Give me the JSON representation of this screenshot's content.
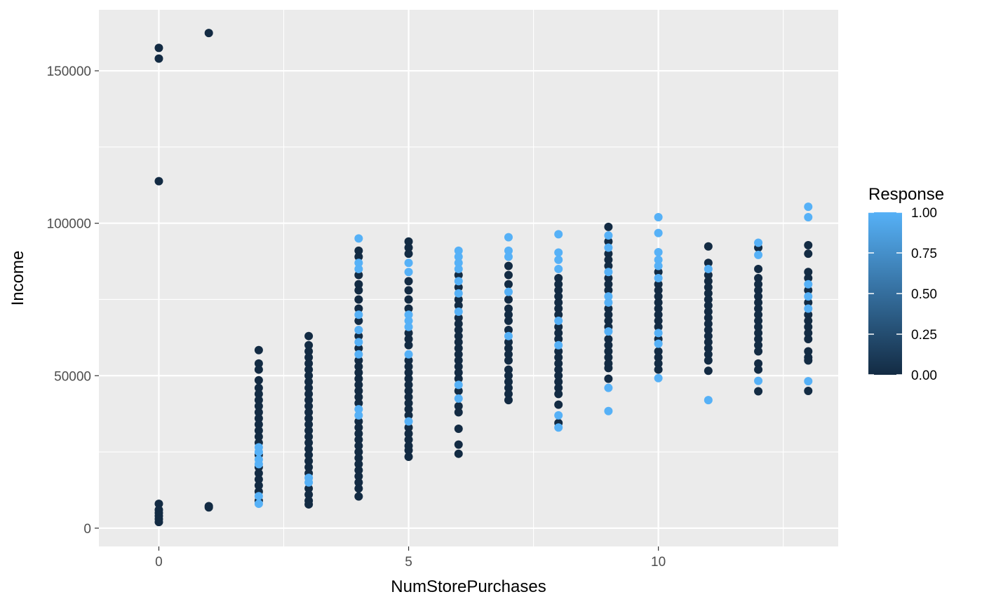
{
  "chart_data": {
    "type": "scatter",
    "xlabel": "NumStorePurchases",
    "ylabel": "Income",
    "xlim": [
      -1.2,
      13.6
    ],
    "ylim": [
      -6000,
      170000
    ],
    "x_ticks": [
      0,
      5,
      10
    ],
    "x_tick_labels": [
      "0",
      "5",
      "10"
    ],
    "y_ticks": [
      0,
      50000,
      100000,
      150000
    ],
    "y_tick_labels": [
      "0",
      "50000",
      "100000",
      "150000"
    ],
    "grid": true,
    "legend": {
      "title": "Response",
      "type": "colorbar",
      "position": "right",
      "low_color": "#132B43",
      "high_color": "#56B1F7",
      "range": [
        0,
        1
      ],
      "breaks": [
        0,
        0.25,
        0.5,
        0.75,
        1
      ],
      "labels": [
        "0.00",
        "0.25",
        "0.50",
        "0.75",
        "1.00"
      ]
    },
    "points": [
      [
        0,
        157500,
        0
      ],
      [
        0,
        154000,
        0
      ],
      [
        0,
        113800,
        0
      ],
      [
        0,
        8000,
        0
      ],
      [
        0,
        6000,
        0
      ],
      [
        0,
        5000,
        0
      ],
      [
        0,
        4000,
        0
      ],
      [
        0,
        3000,
        0
      ],
      [
        0,
        2000,
        0
      ],
      [
        1,
        162400,
        0
      ],
      [
        1,
        7200,
        0
      ],
      [
        1,
        6800,
        0
      ],
      [
        2,
        58400,
        0
      ],
      [
        2,
        54000,
        0
      ],
      [
        2,
        52000,
        0
      ],
      [
        2,
        48500,
        0
      ],
      [
        2,
        46000,
        0
      ],
      [
        2,
        44000,
        0
      ],
      [
        2,
        42000,
        0
      ],
      [
        2,
        40000,
        0
      ],
      [
        2,
        38000,
        0
      ],
      [
        2,
        36000,
        0
      ],
      [
        2,
        34000,
        0
      ],
      [
        2,
        32000,
        0
      ],
      [
        2,
        30000,
        0
      ],
      [
        2,
        28000,
        0
      ],
      [
        2,
        26500,
        1
      ],
      [
        2,
        25000,
        1
      ],
      [
        2,
        24000,
        0
      ],
      [
        2,
        22500,
        1
      ],
      [
        2,
        21000,
        1
      ],
      [
        2,
        20000,
        0
      ],
      [
        2,
        18000,
        0
      ],
      [
        2,
        16000,
        0
      ],
      [
        2,
        14000,
        0
      ],
      [
        2,
        12000,
        0
      ],
      [
        2,
        10500,
        1
      ],
      [
        2,
        9000,
        0
      ],
      [
        2,
        8000,
        1
      ],
      [
        3,
        63000,
        0
      ],
      [
        3,
        60000,
        0
      ],
      [
        3,
        58000,
        0
      ],
      [
        3,
        56000,
        0
      ],
      [
        3,
        54000,
        0
      ],
      [
        3,
        52000,
        0
      ],
      [
        3,
        50000,
        0
      ],
      [
        3,
        48000,
        0
      ],
      [
        3,
        46000,
        0
      ],
      [
        3,
        44000,
        0
      ],
      [
        3,
        42000,
        0
      ],
      [
        3,
        40000,
        0
      ],
      [
        3,
        38000,
        0
      ],
      [
        3,
        36000,
        0
      ],
      [
        3,
        34000,
        0
      ],
      [
        3,
        32000,
        0
      ],
      [
        3,
        30000,
        0
      ],
      [
        3,
        28000,
        0
      ],
      [
        3,
        26000,
        0
      ],
      [
        3,
        24000,
        0
      ],
      [
        3,
        22000,
        0
      ],
      [
        3,
        20000,
        0
      ],
      [
        3,
        18000,
        0
      ],
      [
        3,
        16500,
        1
      ],
      [
        3,
        15000,
        1
      ],
      [
        3,
        13000,
        0
      ],
      [
        3,
        11000,
        0
      ],
      [
        3,
        9000,
        0
      ],
      [
        3,
        7800,
        0
      ],
      [
        4,
        95000,
        1
      ],
      [
        4,
        91000,
        0
      ],
      [
        4,
        89000,
        0
      ],
      [
        4,
        87000,
        1
      ],
      [
        4,
        85000,
        1
      ],
      [
        4,
        83000,
        0
      ],
      [
        4,
        80000,
        0
      ],
      [
        4,
        78000,
        0
      ],
      [
        4,
        75000,
        0
      ],
      [
        4,
        72000,
        0
      ],
      [
        4,
        70000,
        1
      ],
      [
        4,
        68000,
        0
      ],
      [
        4,
        65000,
        1
      ],
      [
        4,
        63000,
        0
      ],
      [
        4,
        61000,
        1
      ],
      [
        4,
        59000,
        0
      ],
      [
        4,
        57000,
        1
      ],
      [
        4,
        55000,
        0
      ],
      [
        4,
        53000,
        0
      ],
      [
        4,
        51000,
        0
      ],
      [
        4,
        49000,
        0
      ],
      [
        4,
        47000,
        0
      ],
      [
        4,
        45000,
        0
      ],
      [
        4,
        43000,
        0
      ],
      [
        4,
        41000,
        0
      ],
      [
        4,
        39000,
        1
      ],
      [
        4,
        37000,
        1
      ],
      [
        4,
        35000,
        0
      ],
      [
        4,
        33000,
        0
      ],
      [
        4,
        31000,
        0
      ],
      [
        4,
        29000,
        0
      ],
      [
        4,
        27000,
        0
      ],
      [
        4,
        25000,
        0
      ],
      [
        4,
        23000,
        0
      ],
      [
        4,
        21000,
        0
      ],
      [
        4,
        19000,
        0
      ],
      [
        4,
        17000,
        0
      ],
      [
        4,
        15000,
        0
      ],
      [
        4,
        13000,
        0
      ],
      [
        4,
        10400,
        0
      ],
      [
        5,
        94000,
        0
      ],
      [
        5,
        92000,
        0
      ],
      [
        5,
        90000,
        0
      ],
      [
        5,
        87000,
        1
      ],
      [
        5,
        84000,
        1
      ],
      [
        5,
        81000,
        0
      ],
      [
        5,
        78000,
        0
      ],
      [
        5,
        75000,
        0
      ],
      [
        5,
        72000,
        0
      ],
      [
        5,
        70000,
        1
      ],
      [
        5,
        68000,
        1
      ],
      [
        5,
        66000,
        1
      ],
      [
        5,
        64000,
        0
      ],
      [
        5,
        62000,
        0
      ],
      [
        5,
        60000,
        0
      ],
      [
        5,
        57000,
        1
      ],
      [
        5,
        55000,
        0
      ],
      [
        5,
        53000,
        0
      ],
      [
        5,
        51000,
        0
      ],
      [
        5,
        49000,
        0
      ],
      [
        5,
        47000,
        0
      ],
      [
        5,
        45000,
        0
      ],
      [
        5,
        43000,
        0
      ],
      [
        5,
        41000,
        0
      ],
      [
        5,
        39000,
        0
      ],
      [
        5,
        37000,
        0
      ],
      [
        5,
        35000,
        1
      ],
      [
        5,
        33000,
        0
      ],
      [
        5,
        31000,
        0
      ],
      [
        5,
        29000,
        0
      ],
      [
        5,
        27000,
        0
      ],
      [
        5,
        25500,
        0
      ],
      [
        5,
        23400,
        0
      ],
      [
        6,
        91000,
        1
      ],
      [
        6,
        89000,
        1
      ],
      [
        6,
        87000,
        1
      ],
      [
        6,
        85000,
        1
      ],
      [
        6,
        83000,
        0
      ],
      [
        6,
        81000,
        1
      ],
      [
        6,
        79000,
        0
      ],
      [
        6,
        77000,
        1
      ],
      [
        6,
        75000,
        0
      ],
      [
        6,
        73000,
        0
      ],
      [
        6,
        71000,
        1
      ],
      [
        6,
        69000,
        0
      ],
      [
        6,
        67000,
        0
      ],
      [
        6,
        65000,
        0
      ],
      [
        6,
        63000,
        0
      ],
      [
        6,
        61000,
        0
      ],
      [
        6,
        59000,
        0
      ],
      [
        6,
        57000,
        0
      ],
      [
        6,
        55000,
        0
      ],
      [
        6,
        53000,
        0
      ],
      [
        6,
        51000,
        0
      ],
      [
        6,
        49000,
        0
      ],
      [
        6,
        47000,
        1
      ],
      [
        6,
        45000,
        0
      ],
      [
        6,
        42500,
        1
      ],
      [
        6,
        40000,
        0
      ],
      [
        6,
        38000,
        0
      ],
      [
        6,
        32600,
        0
      ],
      [
        6,
        27400,
        0
      ],
      [
        6,
        24400,
        0
      ],
      [
        7,
        95400,
        1
      ],
      [
        7,
        91000,
        1
      ],
      [
        7,
        89000,
        1
      ],
      [
        7,
        86000,
        0
      ],
      [
        7,
        83000,
        0
      ],
      [
        7,
        80000,
        0
      ],
      [
        7,
        77500,
        1
      ],
      [
        7,
        75000,
        0
      ],
      [
        7,
        72000,
        0
      ],
      [
        7,
        70000,
        0
      ],
      [
        7,
        68000,
        0
      ],
      [
        7,
        65000,
        0
      ],
      [
        7,
        63000,
        1
      ],
      [
        7,
        61000,
        0
      ],
      [
        7,
        59000,
        0
      ],
      [
        7,
        57000,
        0
      ],
      [
        7,
        55000,
        0
      ],
      [
        7,
        52000,
        0
      ],
      [
        7,
        50000,
        0
      ],
      [
        7,
        48000,
        0
      ],
      [
        7,
        46000,
        0
      ],
      [
        7,
        44000,
        0
      ],
      [
        7,
        42000,
        0
      ],
      [
        8,
        96400,
        1
      ],
      [
        8,
        90400,
        1
      ],
      [
        8,
        88000,
        1
      ],
      [
        8,
        85000,
        1
      ],
      [
        8,
        82000,
        0
      ],
      [
        8,
        80000,
        0
      ],
      [
        8,
        78000,
        0
      ],
      [
        8,
        76000,
        0
      ],
      [
        8,
        74000,
        0
      ],
      [
        8,
        72000,
        0
      ],
      [
        8,
        70000,
        0
      ],
      [
        8,
        68000,
        1
      ],
      [
        8,
        66000,
        0
      ],
      [
        8,
        64000,
        0
      ],
      [
        8,
        62000,
        0
      ],
      [
        8,
        60000,
        1
      ],
      [
        8,
        58000,
        0
      ],
      [
        8,
        56000,
        0
      ],
      [
        8,
        54000,
        0
      ],
      [
        8,
        52000,
        0
      ],
      [
        8,
        50000,
        0
      ],
      [
        8,
        48000,
        0
      ],
      [
        8,
        46000,
        0
      ],
      [
        8,
        44000,
        0
      ],
      [
        8,
        40500,
        0
      ],
      [
        8,
        37000,
        1
      ],
      [
        8,
        34500,
        0
      ],
      [
        8,
        33000,
        1
      ],
      [
        9,
        98800,
        0
      ],
      [
        9,
        96000,
        1
      ],
      [
        9,
        94000,
        0
      ],
      [
        9,
        92000,
        1
      ],
      [
        9,
        90000,
        0
      ],
      [
        9,
        88000,
        0
      ],
      [
        9,
        86000,
        0
      ],
      [
        9,
        84000,
        1
      ],
      [
        9,
        82000,
        0
      ],
      [
        9,
        80000,
        0
      ],
      [
        9,
        78000,
        0
      ],
      [
        9,
        76000,
        1
      ],
      [
        9,
        74000,
        1
      ],
      [
        9,
        72000,
        0
      ],
      [
        9,
        70000,
        0
      ],
      [
        9,
        68000,
        0
      ],
      [
        9,
        66000,
        0
      ],
      [
        9,
        64500,
        1
      ],
      [
        9,
        62000,
        0
      ],
      [
        9,
        60000,
        0
      ],
      [
        9,
        58000,
        0
      ],
      [
        9,
        56000,
        0
      ],
      [
        9,
        54000,
        0
      ],
      [
        9,
        52500,
        0
      ],
      [
        9,
        49000,
        0
      ],
      [
        9,
        46000,
        1
      ],
      [
        9,
        38400,
        1
      ],
      [
        10,
        102000,
        1
      ],
      [
        10,
        96800,
        1
      ],
      [
        10,
        90500,
        1
      ],
      [
        10,
        88000,
        1
      ],
      [
        10,
        86000,
        1
      ],
      [
        10,
        84000,
        0
      ],
      [
        10,
        82000,
        1
      ],
      [
        10,
        80000,
        0
      ],
      [
        10,
        78000,
        0
      ],
      [
        10,
        76000,
        0
      ],
      [
        10,
        74000,
        0
      ],
      [
        10,
        72000,
        0
      ],
      [
        10,
        70000,
        0
      ],
      [
        10,
        68000,
        0
      ],
      [
        10,
        66000,
        0
      ],
      [
        10,
        64000,
        1
      ],
      [
        10,
        62000,
        0
      ],
      [
        10,
        60500,
        1
      ],
      [
        10,
        58000,
        0
      ],
      [
        10,
        56000,
        0
      ],
      [
        10,
        54000,
        0
      ],
      [
        10,
        52000,
        0
      ],
      [
        10,
        49200,
        1
      ],
      [
        11,
        92400,
        0
      ],
      [
        11,
        87000,
        0
      ],
      [
        11,
        85000,
        1
      ],
      [
        11,
        83000,
        0
      ],
      [
        11,
        81000,
        0
      ],
      [
        11,
        79000,
        0
      ],
      [
        11,
        77000,
        0
      ],
      [
        11,
        75000,
        0
      ],
      [
        11,
        73000,
        0
      ],
      [
        11,
        71000,
        0
      ],
      [
        11,
        69000,
        0
      ],
      [
        11,
        67000,
        0
      ],
      [
        11,
        65000,
        0
      ],
      [
        11,
        63000,
        0
      ],
      [
        11,
        61000,
        0
      ],
      [
        11,
        59000,
        0
      ],
      [
        11,
        57000,
        0
      ],
      [
        11,
        55000,
        0
      ],
      [
        11,
        51600,
        0
      ],
      [
        11,
        42000,
        1
      ],
      [
        12,
        93600,
        1
      ],
      [
        12,
        92000,
        0
      ],
      [
        12,
        89600,
        1
      ],
      [
        12,
        85000,
        0
      ],
      [
        12,
        82000,
        0
      ],
      [
        12,
        80000,
        0
      ],
      [
        12,
        78000,
        0
      ],
      [
        12,
        76000,
        0
      ],
      [
        12,
        74000,
        0
      ],
      [
        12,
        72000,
        0
      ],
      [
        12,
        70000,
        0
      ],
      [
        12,
        68000,
        0
      ],
      [
        12,
        66000,
        0
      ],
      [
        12,
        64000,
        0
      ],
      [
        12,
        62000,
        0
      ],
      [
        12,
        60000,
        0
      ],
      [
        12,
        58000,
        0
      ],
      [
        12,
        54000,
        0
      ],
      [
        12,
        52000,
        0
      ],
      [
        12,
        48300,
        1
      ],
      [
        12,
        44900,
        0
      ],
      [
        13,
        105400,
        1
      ],
      [
        13,
        102000,
        1
      ],
      [
        13,
        92800,
        0
      ],
      [
        13,
        90000,
        0
      ],
      [
        13,
        84000,
        0
      ],
      [
        13,
        82000,
        0
      ],
      [
        13,
        80000,
        1
      ],
      [
        13,
        78000,
        0
      ],
      [
        13,
        76000,
        1
      ],
      [
        13,
        74000,
        0
      ],
      [
        13,
        72000,
        1
      ],
      [
        13,
        70000,
        0
      ],
      [
        13,
        68000,
        0
      ],
      [
        13,
        66000,
        0
      ],
      [
        13,
        64000,
        0
      ],
      [
        13,
        62000,
        0
      ],
      [
        13,
        58000,
        0
      ],
      [
        13,
        56000,
        0
      ],
      [
        13,
        55000,
        0
      ],
      [
        13,
        48200,
        1
      ],
      [
        13,
        45000,
        0
      ]
    ]
  }
}
